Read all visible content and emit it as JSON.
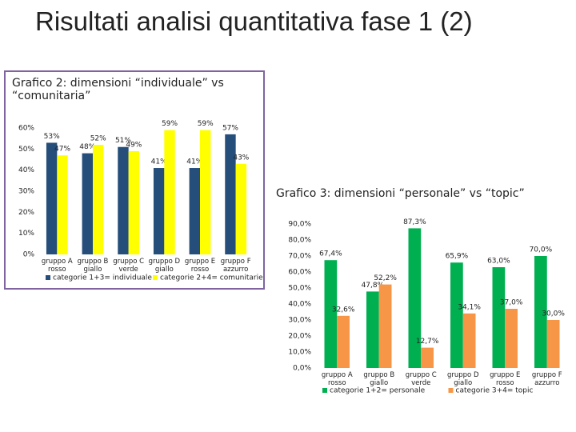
{
  "title": "Risultati analisi quantitativa fase 1 (2)",
  "chart_data": [
    {
      "type": "bar",
      "title": "Grafico 2: dimensioni “individuale” vs “comunitaria”",
      "categories": [
        "gruppo A rosso",
        "gruppo B giallo",
        "gruppo C verde",
        "gruppo D giallo",
        "gruppo E rosso",
        "gruppo F azzurro"
      ],
      "series": [
        {
          "name": "categorie 1+3= individuale",
          "color": "#254e7b",
          "values": [
            53,
            48,
            51,
            41,
            41,
            57
          ],
          "value_labels": [
            "53%",
            "48%",
            "51%",
            "41%",
            "41%",
            "57%"
          ]
        },
        {
          "name": "categorie 2+4= comunitarie",
          "color": "#ffff00",
          "values": [
            47,
            52,
            49,
            59,
            59,
            43
          ],
          "value_labels": [
            "47%",
            "52%",
            "49%",
            "59%",
            "59%",
            "43%"
          ]
        }
      ],
      "ylim": [
        0,
        60
      ],
      "yticks": [
        {
          "value": 0,
          "label": "0%"
        },
        {
          "value": 10,
          "label": "10%"
        },
        {
          "value": 20,
          "label": "20%"
        },
        {
          "value": 30,
          "label": "30%"
        },
        {
          "value": 40,
          "label": "40%"
        },
        {
          "value": 50,
          "label": "50%"
        },
        {
          "value": 60,
          "label": "60%"
        }
      ],
      "legend": "bottom"
    },
    {
      "type": "bar",
      "title": "Grafico 3: dimensioni “personale” vs “topic”",
      "categories": [
        "gruppo A rosso",
        "gruppo B giallo",
        "gruppo C verde",
        "gruppo D giallo",
        "gruppo E rosso",
        "gruppo F azzurro"
      ],
      "series": [
        {
          "name": "categorie 1+2= personale",
          "color": "#00b050",
          "values": [
            67.4,
            47.8,
            87.3,
            65.9,
            63.0,
            70.0
          ],
          "value_labels": [
            "67,4%",
            "47,8%",
            "87,3%",
            "65,9%",
            "63,0%",
            "70,0%"
          ]
        },
        {
          "name": "categorie 3+4= topic",
          "color": "#f79646",
          "values": [
            32.6,
            52.2,
            12.7,
            34.1,
            37.0,
            30.0
          ],
          "value_labels": [
            "32,6%",
            "52,2%",
            "12,7%",
            "34,1%",
            "37,0%",
            "30,0%"
          ]
        }
      ],
      "ylim": [
        0,
        90
      ],
      "yticks": [
        {
          "value": 0,
          "label": "0,0%"
        },
        {
          "value": 10,
          "label": "10,0%"
        },
        {
          "value": 20,
          "label": "20,0%"
        },
        {
          "value": 30,
          "label": "30,0%"
        },
        {
          "value": 40,
          "label": "40,0%"
        },
        {
          "value": 50,
          "label": "50,0%"
        },
        {
          "value": 60,
          "label": "60,0%"
        },
        {
          "value": 70,
          "label": "70,0%"
        },
        {
          "value": 80,
          "label": "80,0%"
        },
        {
          "value": 90,
          "label": "90,0%"
        }
      ],
      "legend": "bottom"
    }
  ]
}
